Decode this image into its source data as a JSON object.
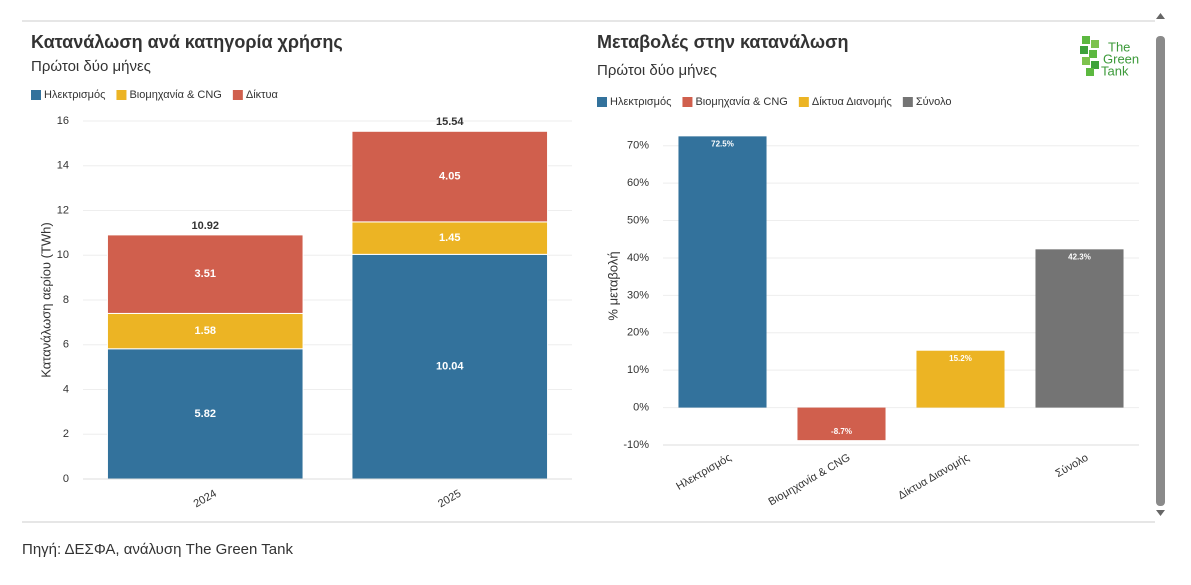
{
  "chart_data": [
    {
      "type": "stacked_bar",
      "title": "Κατανάλωση ανά κατηγορία χρήσης",
      "subtitle": "Πρώτοι δύο μήνες",
      "ylabel": "Κατανάλωση αερίου (TWh)",
      "categories": [
        "2024",
        "2025"
      ],
      "series": [
        {
          "name": "Ηλεκτρισμός",
          "color": "#33729c",
          "values": [
            5.82,
            10.04
          ]
        },
        {
          "name": "Βιομηχανία & CNG",
          "color": "#ecb424",
          "values": [
            1.58,
            1.45
          ]
        },
        {
          "name": "Δίκτυα",
          "color": "#d05f4d",
          "values": [
            3.51,
            4.05
          ]
        }
      ],
      "totals": [
        10.92,
        15.54
      ],
      "ylim": [
        0,
        16
      ],
      "yticks": [
        0,
        2,
        4,
        6,
        8,
        10,
        12,
        14,
        16
      ],
      "grid": true
    },
    {
      "type": "bar",
      "title": "Μεταβολές στην κατανάλωση",
      "subtitle": "Πρώτοι δύο μήνες",
      "ylabel": "% μεταβολή",
      "categories": [
        "Ηλεκτρισμός",
        "Βιομηχανία & CNG",
        "Δίκτυα Διανομής",
        "Σύνολο"
      ],
      "values": [
        72.5,
        -8.7,
        15.2,
        42.3
      ],
      "value_labels": [
        "72.5%",
        "-8.7%",
        "15.2%",
        "42.3%"
      ],
      "colors": [
        "#33729c",
        "#d05f4d",
        "#ecb424",
        "#747474"
      ],
      "ylim": [
        -10,
        75
      ],
      "yticks": [
        {
          "value": -10,
          "label": "-10%"
        },
        {
          "value": 0,
          "label": "0%"
        },
        {
          "value": 10,
          "label": "10%"
        },
        {
          "value": 20,
          "label": "20%"
        },
        {
          "value": 30,
          "label": "30%"
        },
        {
          "value": 40,
          "label": "40%"
        },
        {
          "value": 50,
          "label": "50%"
        },
        {
          "value": 60,
          "label": "60%"
        },
        {
          "value": 70,
          "label": "70%"
        }
      ],
      "grid": true
    }
  ],
  "logo": [
    "The",
    "Green",
    "Tank"
  ],
  "source": "Πηγή: ΔΕΣΦΑ, ανάλυση The Green Tank"
}
